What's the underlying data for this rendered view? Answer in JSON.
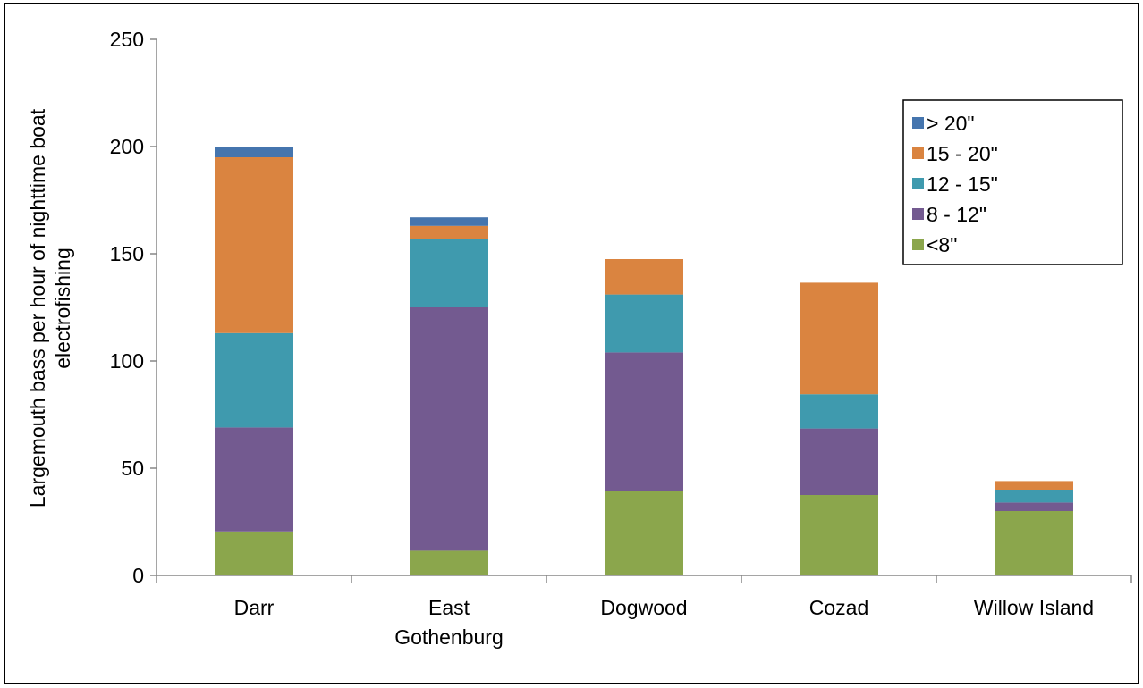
{
  "chart_data": {
    "type": "bar",
    "stacked": true,
    "title": "",
    "xlabel": "",
    "ylabel": "Largemouth bass per hour of nighttime boat electrofishing",
    "ylabel_lines": [
      "Largemouth bass per hour of nighttime boat",
      "electrofishing"
    ],
    "ylim": [
      0,
      250
    ],
    "yticks": [
      "0",
      "50",
      "100",
      "150",
      "200",
      "250"
    ],
    "ytick_values": [
      0,
      50,
      100,
      150,
      200,
      250
    ],
    "grid": false,
    "legend_position": "top-right",
    "categories": [
      "Darr",
      "East Gothenburg",
      "Dogwood",
      "Cozad",
      "Willow Island"
    ],
    "category_lines": [
      [
        "Darr"
      ],
      [
        "East",
        "Gothenburg"
      ],
      [
        "Dogwood"
      ],
      [
        "Cozad"
      ],
      [
        "Willow Island"
      ]
    ],
    "series": [
      {
        "name": "<8\"",
        "color": "#8BA64C",
        "values": [
          20.5,
          11.5,
          39.5,
          37.5,
          30
        ]
      },
      {
        "name": "8 - 12\"",
        "color": "#735A90",
        "values": [
          48.5,
          113.5,
          64.5,
          31,
          4
        ]
      },
      {
        "name": "12 - 15\"",
        "color": "#3F9AAE",
        "values": [
          44,
          32,
          27,
          16,
          6
        ]
      },
      {
        "name": "15 - 20\"",
        "color": "#DA8440",
        "values": [
          82,
          6,
          16.5,
          52,
          4
        ]
      },
      {
        "name": "> 20\"",
        "color": "#4575AE",
        "values": [
          5,
          4,
          0,
          0,
          0
        ]
      }
    ],
    "legend_order": [
      "> 20\"",
      "15 - 20\"",
      "12 - 15\"",
      "8 - 12\"",
      "<8\""
    ]
  }
}
